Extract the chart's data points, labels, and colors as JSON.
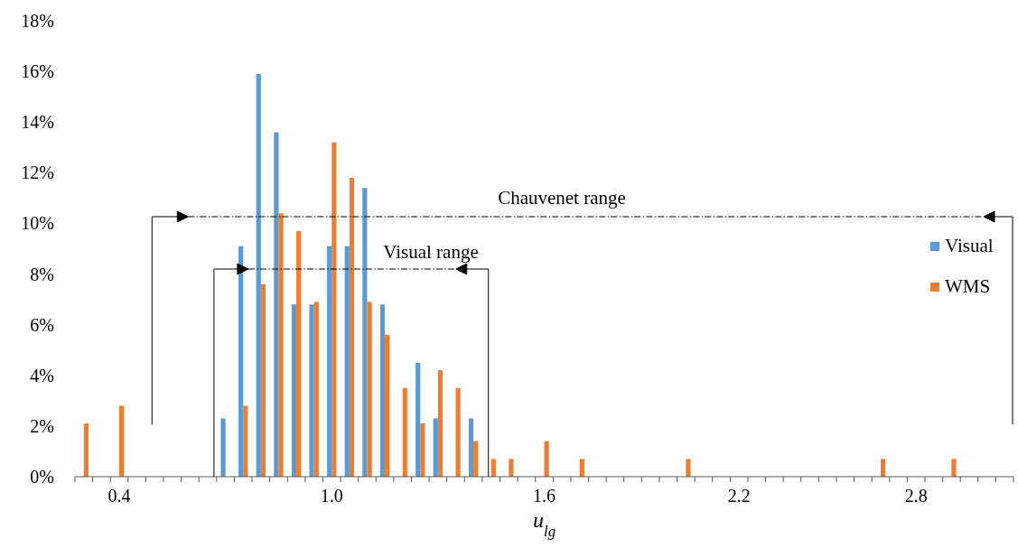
{
  "chart_data": {
    "type": "bar",
    "categories": [
      null,
      null,
      "0.4",
      null,
      null,
      null,
      null,
      null,
      null,
      null,
      null,
      null,
      null,
      null,
      "1.0",
      null,
      null,
      null,
      null,
      null,
      null,
      null,
      null,
      null,
      null,
      null,
      "1.6",
      null,
      null,
      null,
      null,
      null,
      null,
      null,
      null,
      null,
      null,
      "2.2",
      null,
      null,
      null,
      null,
      null,
      null,
      null,
      null,
      null,
      "2.8",
      null,
      null,
      null,
      null,
      null
    ],
    "series": [
      {
        "name": "Visual",
        "color": "#5b9bd5",
        "values": [
          null,
          null,
          null,
          null,
          null,
          null,
          null,
          null,
          2.3,
          9.1,
          15.9,
          13.6,
          6.8,
          6.8,
          9.1,
          9.1,
          11.4,
          6.8,
          null,
          4.5,
          2.3,
          null,
          2.3,
          null,
          null,
          null,
          null,
          null,
          null,
          null,
          null,
          null,
          null,
          null,
          null,
          null,
          null,
          null,
          null,
          null,
          null,
          null,
          null,
          null,
          null,
          null,
          null,
          null,
          null,
          null,
          null,
          null,
          null
        ]
      },
      {
        "name": "WMS",
        "color": "#ed7d31",
        "values": [
          2.1,
          null,
          2.8,
          null,
          null,
          null,
          null,
          null,
          null,
          2.8,
          7.6,
          10.4,
          9.7,
          6.9,
          13.2,
          11.8,
          6.9,
          5.6,
          3.5,
          2.1,
          4.2,
          3.5,
          1.4,
          0.7,
          0.7,
          null,
          1.4,
          null,
          0.7,
          null,
          null,
          null,
          null,
          null,
          0.7,
          null,
          null,
          null,
          null,
          null,
          null,
          null,
          null,
          null,
          null,
          0.7,
          null,
          null,
          null,
          0.7,
          null,
          null,
          null
        ]
      }
    ],
    "ylim": [
      0,
      18
    ],
    "yticks": [
      {
        "value": 0,
        "label": "0%"
      },
      {
        "value": 2,
        "label": "2%"
      },
      {
        "value": 4,
        "label": "4%"
      },
      {
        "value": 6,
        "label": "6%"
      },
      {
        "value": 8,
        "label": "8%"
      },
      {
        "value": 10,
        "label": "10%"
      },
      {
        "value": 12,
        "label": "12%"
      },
      {
        "value": 14,
        "label": "14%"
      },
      {
        "value": 16,
        "label": "16%"
      },
      {
        "value": 18,
        "label": "18%"
      }
    ],
    "xlabel": "u$_{lg}$",
    "legend": "right",
    "grid": false,
    "annotations": [
      "Chauvenet range",
      "Visual range"
    ]
  }
}
